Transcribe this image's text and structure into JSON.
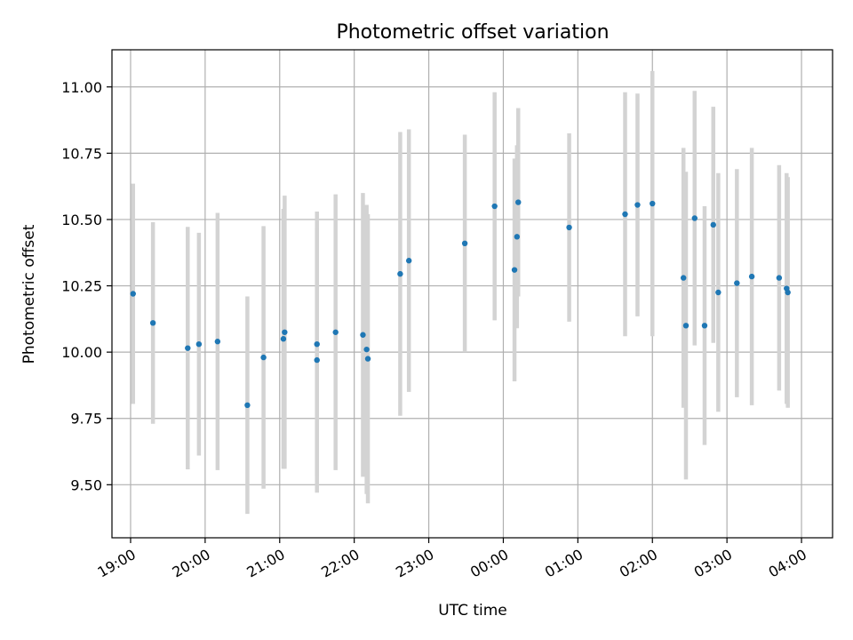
{
  "chart_data": {
    "type": "scatter",
    "title": "Photometric offset variation",
    "xlabel": "UTC time",
    "ylabel": "Photometric offset",
    "grid": true,
    "x_axis_type": "time",
    "x_range": [
      "18:45",
      "04:25"
    ],
    "y_range": [
      9.3,
      11.14
    ],
    "xticks": [
      {
        "t": "19:00",
        "label": "19:00"
      },
      {
        "t": "20:00",
        "label": "20:00"
      },
      {
        "t": "21:00",
        "label": "21:00"
      },
      {
        "t": "22:00",
        "label": "22:00"
      },
      {
        "t": "23:00",
        "label": "23:00"
      },
      {
        "t": "00:00",
        "label": "00:00"
      },
      {
        "t": "01:00",
        "label": "01:00"
      },
      {
        "t": "02:00",
        "label": "02:00"
      },
      {
        "t": "03:00",
        "label": "03:00"
      },
      {
        "t": "04:00",
        "label": "04:00"
      }
    ],
    "yticks": [
      {
        "v": 9.5,
        "label": "9.50"
      },
      {
        "v": 9.75,
        "label": "9.75"
      },
      {
        "v": 10.0,
        "label": "10.00"
      },
      {
        "v": 10.25,
        "label": "10.25"
      },
      {
        "v": 10.5,
        "label": "10.50"
      },
      {
        "v": 10.75,
        "label": "10.75"
      },
      {
        "v": 11.0,
        "label": "11.00"
      }
    ],
    "point_color": "#1f77b4",
    "errorbar_color": "#d3d3d3",
    "points": [
      {
        "t": "19:02",
        "y": 10.22,
        "err": 0.415
      },
      {
        "t": "19:18",
        "y": 10.11,
        "err": 0.38
      },
      {
        "t": "19:46",
        "y": 10.015,
        "err": 0.457
      },
      {
        "t": "19:55",
        "y": 10.03,
        "err": 0.42
      },
      {
        "t": "20:10",
        "y": 10.04,
        "err": 0.485
      },
      {
        "t": "20:34",
        "y": 9.8,
        "err": 0.41
      },
      {
        "t": "20:47",
        "y": 9.98,
        "err": 0.495
      },
      {
        "t": "21:03",
        "y": 10.05,
        "err": 0.49
      },
      {
        "t": "21:04",
        "y": 10.075,
        "err": 0.515
      },
      {
        "t": "21:30",
        "y": 10.03,
        "err": 0.5
      },
      {
        "t": "21:30",
        "y": 9.97,
        "err": 0.5
      },
      {
        "t": "21:45",
        "y": 10.075,
        "err": 0.52
      },
      {
        "t": "22:07",
        "y": 10.065,
        "err": 0.535
      },
      {
        "t": "22:10",
        "y": 10.01,
        "err": 0.545
      },
      {
        "t": "22:11",
        "y": 9.975,
        "err": 0.545
      },
      {
        "t": "22:37",
        "y": 10.295,
        "err": 0.535
      },
      {
        "t": "22:44",
        "y": 10.345,
        "err": 0.495
      },
      {
        "t": "23:29",
        "y": 10.41,
        "err": 0.41
      },
      {
        "t": "23:53",
        "y": 10.55,
        "err": 0.43
      },
      {
        "t": "00:09",
        "y": 10.31,
        "err": 0.42
      },
      {
        "t": "00:11",
        "y": 10.435,
        "err": 0.345
      },
      {
        "t": "00:12",
        "y": 10.565,
        "err": 0.355
      },
      {
        "t": "00:53",
        "y": 10.47,
        "err": 0.355
      },
      {
        "t": "01:38",
        "y": 10.52,
        "err": 0.46
      },
      {
        "t": "01:48",
        "y": 10.555,
        "err": 0.42
      },
      {
        "t": "02:00",
        "y": 10.56,
        "err": 0.5
      },
      {
        "t": "02:25",
        "y": 10.28,
        "err": 0.49
      },
      {
        "t": "02:27",
        "y": 10.1,
        "err": 0.58
      },
      {
        "t": "02:34",
        "y": 10.505,
        "err": 0.48
      },
      {
        "t": "02:42",
        "y": 10.1,
        "err": 0.45
      },
      {
        "t": "02:49",
        "y": 10.48,
        "err": 0.445
      },
      {
        "t": "02:53",
        "y": 10.225,
        "err": 0.45
      },
      {
        "t": "03:08",
        "y": 10.26,
        "err": 0.43
      },
      {
        "t": "03:20",
        "y": 10.285,
        "err": 0.485
      },
      {
        "t": "03:42",
        "y": 10.28,
        "err": 0.425
      },
      {
        "t": "03:48",
        "y": 10.24,
        "err": 0.435
      },
      {
        "t": "03:49",
        "y": 10.225,
        "err": 0.435
      }
    ]
  }
}
